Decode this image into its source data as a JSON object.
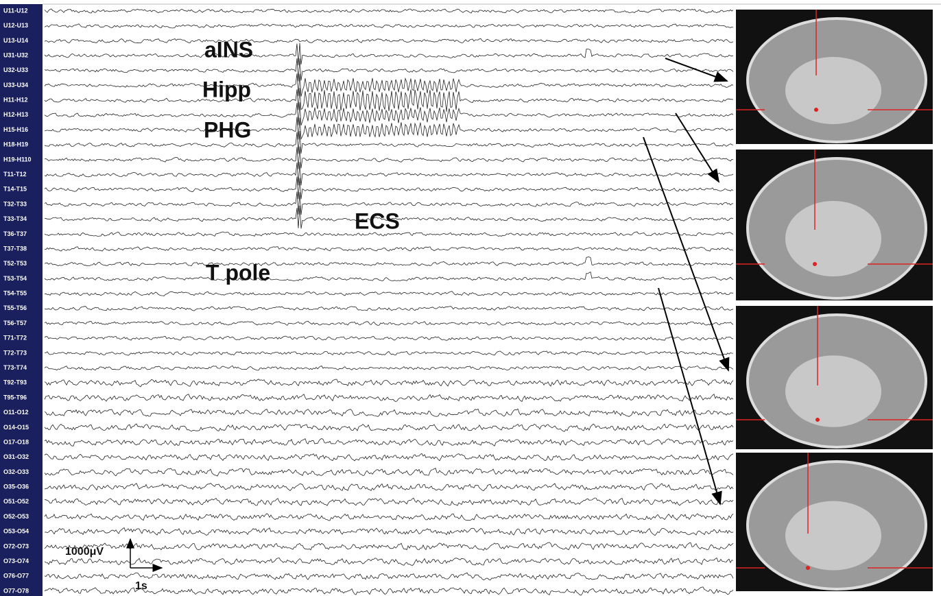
{
  "channels": [
    "U11-U12",
    "U12-U13",
    "U13-U14",
    "U31-U32",
    "U32-U33",
    "U33-U34",
    "H11-H12",
    "H12-H13",
    "H15-H16",
    "H18-H19",
    "H19-H110",
    "T11-T12",
    "T14-T15",
    "T32-T33",
    "T33-T34",
    "T36-T37",
    "T37-T38",
    "T52-T53",
    "T53-T54",
    "T54-T55",
    "T55-T56",
    "T56-T57",
    "T71-T72",
    "T72-T73",
    "T73-T74",
    "T92-T93",
    "T95-T96",
    "O11-O12",
    "O14-O15",
    "O17-O18",
    "O31-O32",
    "O32-O33",
    "O35-O36",
    "O51-O52",
    "O52-O53",
    "O53-O54",
    "O72-O73",
    "O73-O74",
    "O76-O77",
    "O77-O78"
  ],
  "annotations": [
    "aINS",
    "Hipp",
    "PHG",
    "ECS",
    "T pole"
  ],
  "scale_bar": {
    "amplitude": "1000μV",
    "time": "1s"
  }
}
